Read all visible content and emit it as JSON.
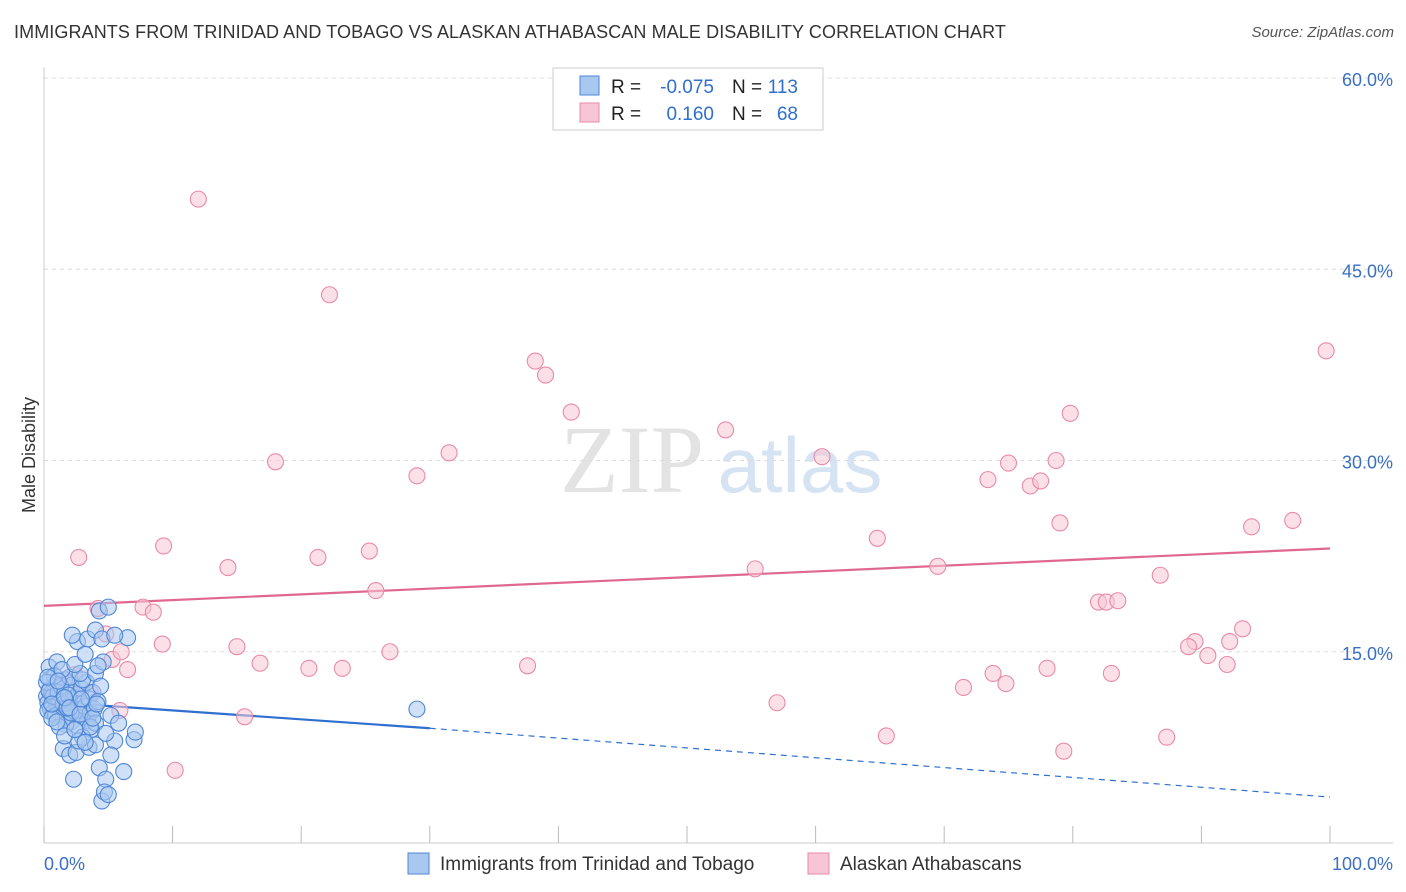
{
  "header": {
    "title": "IMMIGRANTS FROM TRINIDAD AND TOBAGO VS ALASKAN ATHABASCAN MALE DISABILITY CORRELATION CHART",
    "source": "Source: ZipAtlas.com"
  },
  "watermark": {
    "zip": "ZIP",
    "atlas": "atlas"
  },
  "legend": {
    "row1": {
      "r_label": "R =",
      "r_value": "-0.075",
      "n_label": "N =",
      "n_value": "113"
    },
    "row2": {
      "r_label": "R =",
      "r_value": "0.160",
      "n_label": "N =",
      "n_value": "68"
    }
  },
  "bottom_legend": {
    "series1": "Immigrants from Trinidad and Tobago",
    "series2": "Alaskan Athabascans"
  },
  "colors": {
    "blue_fill": "#a9c8f0",
    "blue_stroke": "#4f86d6",
    "blue_line": "#2f6fd0",
    "pink_fill": "#f7c6d6",
    "pink_stroke": "#e98aa8",
    "pink_line": "#e06890",
    "grid": "#dddddd",
    "tick_text": "#3a6fc4"
  },
  "chart_data": {
    "type": "scatter",
    "title": "IMMIGRANTS FROM TRINIDAD AND TOBAGO VS ALASKAN ATHABASCAN MALE DISABILITY CORRELATION CHART",
    "xlabel": "",
    "ylabel": "Male Disability",
    "xlim": [
      0,
      100
    ],
    "ylim": [
      0,
      63
    ],
    "x_tick_labels": [
      "0.0%",
      "100.0%"
    ],
    "y_ticks": [
      15,
      30,
      45,
      60
    ],
    "y_tick_labels": [
      "15.0%",
      "30.0%",
      "45.0%",
      "60.0%"
    ],
    "series": [
      {
        "name": "Immigrants from Trinidad and Tobago",
        "R": -0.075,
        "N": 113,
        "trend": {
          "x0": 0,
          "y0": 11.1,
          "x1": 30,
          "y1": 9.0,
          "dash_to_x": 100,
          "dash_to_y": 3.6
        },
        "points": [
          [
            0.2,
            11.5
          ],
          [
            0.3,
            11.0
          ],
          [
            0.4,
            12.0
          ],
          [
            0.5,
            10.5
          ],
          [
            0.6,
            11.8
          ],
          [
            0.7,
            10.2
          ],
          [
            0.8,
            12.5
          ],
          [
            0.9,
            11.3
          ],
          [
            1.0,
            10.8
          ],
          [
            1.1,
            12.2
          ],
          [
            1.2,
            11.0
          ],
          [
            1.3,
            10.0
          ],
          [
            1.4,
            11.6
          ],
          [
            1.5,
            9.8
          ],
          [
            1.6,
            12.8
          ],
          [
            1.7,
            10.6
          ],
          [
            1.8,
            11.9
          ],
          [
            1.9,
            10.3
          ],
          [
            2.0,
            11.2
          ],
          [
            2.1,
            9.5
          ],
          [
            2.2,
            12.4
          ],
          [
            2.3,
            10.9
          ],
          [
            2.4,
            11.4
          ],
          [
            2.5,
            10.1
          ],
          [
            2.6,
            9.2
          ],
          [
            2.7,
            11.7
          ],
          [
            2.8,
            10.4
          ],
          [
            2.9,
            12.1
          ],
          [
            3.0,
            9.9
          ],
          [
            3.1,
            11.0
          ],
          [
            3.2,
            10.7
          ],
          [
            3.3,
            12.6
          ],
          [
            3.4,
            9.6
          ],
          [
            3.5,
            11.3
          ],
          [
            3.6,
            10.2
          ],
          [
            3.7,
            8.9
          ],
          [
            3.8,
            11.8
          ],
          [
            3.9,
            10.5
          ],
          [
            4.0,
            9.4
          ],
          [
            4.2,
            11.1
          ],
          [
            0.3,
            10.4
          ],
          [
            0.5,
            12.9
          ],
          [
            0.7,
            11.5
          ],
          [
            0.9,
            10.0
          ],
          [
            1.1,
            11.8
          ],
          [
            1.3,
            12.3
          ],
          [
            1.5,
            10.9
          ],
          [
            1.7,
            9.3
          ],
          [
            1.9,
            11.6
          ],
          [
            2.1,
            10.2
          ],
          [
            0.4,
            13.8
          ],
          [
            1.0,
            14.2
          ],
          [
            2.0,
            13.0
          ],
          [
            3.0,
            12.8
          ],
          [
            4.0,
            13.3
          ],
          [
            2.6,
            15.8
          ],
          [
            2.2,
            16.3
          ],
          [
            3.4,
            16.0
          ],
          [
            4.0,
            16.7
          ],
          [
            4.5,
            16.0
          ],
          [
            1.5,
            7.4
          ],
          [
            2.0,
            6.9
          ],
          [
            2.5,
            7.1
          ],
          [
            3.5,
            7.5
          ],
          [
            4.0,
            7.7
          ],
          [
            3.0,
            8.3
          ],
          [
            5.5,
            8.0
          ],
          [
            7.0,
            8.1
          ],
          [
            7.1,
            8.7
          ],
          [
            4.3,
            5.9
          ],
          [
            6.2,
            5.6
          ],
          [
            4.8,
            5.0
          ],
          [
            2.3,
            5.0
          ],
          [
            4.5,
            3.3
          ],
          [
            4.7,
            4.0
          ],
          [
            5.0,
            3.8
          ],
          [
            6.5,
            16.1
          ],
          [
            5.5,
            16.3
          ],
          [
            4.3,
            18.2
          ],
          [
            4.6,
            14.2
          ],
          [
            2.8,
            13.3
          ],
          [
            1.8,
            10.6
          ],
          [
            1.2,
            9.1
          ],
          [
            2.7,
            8.0
          ],
          [
            3.6,
            9.1
          ],
          [
            4.4,
            12.3
          ],
          [
            5.2,
            10.0
          ],
          [
            5.8,
            9.4
          ],
          [
            0.6,
            9.8
          ],
          [
            0.8,
            13.1
          ],
          [
            1.4,
            13.6
          ],
          [
            2.4,
            14.0
          ],
          [
            3.2,
            14.8
          ],
          [
            0.2,
            12.6
          ],
          [
            0.4,
            11.9
          ],
          [
            0.6,
            10.9
          ],
          [
            1.6,
            11.4
          ],
          [
            2.0,
            10.6
          ],
          [
            2.8,
            10.1
          ],
          [
            3.8,
            9.8
          ],
          [
            4.8,
            8.6
          ],
          [
            5.2,
            6.9
          ],
          [
            1.0,
            9.5
          ],
          [
            1.6,
            8.4
          ],
          [
            2.4,
            8.9
          ],
          [
            3.2,
            7.9
          ],
          [
            4.2,
            13.9
          ],
          [
            5.0,
            18.5
          ],
          [
            29.0,
            10.5
          ],
          [
            0.3,
            13.0
          ],
          [
            1.1,
            12.7
          ],
          [
            2.9,
            11.3
          ],
          [
            4.1,
            10.9
          ]
        ]
      },
      {
        "name": "Alaskan Athabascans",
        "R": 0.16,
        "N": 68,
        "trend": {
          "x0": 0,
          "y0": 18.6,
          "x1": 100,
          "y1": 23.1
        },
        "points": [
          [
            12.0,
            50.5
          ],
          [
            22.2,
            43.0
          ],
          [
            38.2,
            37.8
          ],
          [
            39.0,
            36.7
          ],
          [
            41.0,
            33.8
          ],
          [
            53.0,
            32.4
          ],
          [
            60.5,
            30.3
          ],
          [
            18.0,
            29.9
          ],
          [
            31.5,
            30.6
          ],
          [
            29.0,
            28.8
          ],
          [
            75.0,
            29.8
          ],
          [
            73.4,
            28.5
          ],
          [
            76.7,
            28.0
          ],
          [
            77.5,
            28.4
          ],
          [
            78.7,
            30.0
          ],
          [
            79.8,
            33.7
          ],
          [
            99.7,
            38.6
          ],
          [
            2.7,
            22.4
          ],
          [
            9.3,
            23.3
          ],
          [
            14.3,
            21.6
          ],
          [
            21.3,
            22.4
          ],
          [
            25.3,
            22.9
          ],
          [
            64.8,
            23.9
          ],
          [
            79.0,
            25.1
          ],
          [
            93.9,
            24.8
          ],
          [
            97.1,
            25.3
          ],
          [
            55.3,
            21.5
          ],
          [
            69.5,
            21.7
          ],
          [
            86.8,
            21.0
          ],
          [
            25.8,
            19.8
          ],
          [
            7.7,
            18.5
          ],
          [
            8.5,
            18.1
          ],
          [
            4.2,
            18.4
          ],
          [
            82.0,
            18.9
          ],
          [
            82.6,
            18.9
          ],
          [
            83.5,
            19.0
          ],
          [
            4.8,
            16.4
          ],
          [
            9.2,
            15.6
          ],
          [
            15.0,
            15.4
          ],
          [
            26.9,
            15.0
          ],
          [
            89.5,
            15.8
          ],
          [
            90.5,
            14.7
          ],
          [
            92.2,
            15.8
          ],
          [
            93.2,
            16.8
          ],
          [
            5.3,
            14.4
          ],
          [
            6.0,
            15.0
          ],
          [
            16.8,
            14.1
          ],
          [
            20.6,
            13.7
          ],
          [
            23.2,
            13.7
          ],
          [
            37.6,
            13.9
          ],
          [
            78.0,
            13.7
          ],
          [
            83.0,
            13.3
          ],
          [
            89.0,
            15.4
          ],
          [
            92.0,
            14.0
          ],
          [
            2.4,
            13.2
          ],
          [
            6.5,
            13.6
          ],
          [
            71.5,
            12.2
          ],
          [
            73.8,
            13.3
          ],
          [
            74.8,
            12.5
          ],
          [
            57.0,
            11.0
          ],
          [
            5.9,
            10.4
          ],
          [
            15.6,
            9.9
          ],
          [
            2.0,
            12.5
          ],
          [
            65.5,
            8.4
          ],
          [
            79.3,
            7.2
          ],
          [
            87.3,
            8.3
          ],
          [
            10.2,
            5.7
          ],
          [
            3.6,
            11.8
          ]
        ]
      }
    ]
  }
}
